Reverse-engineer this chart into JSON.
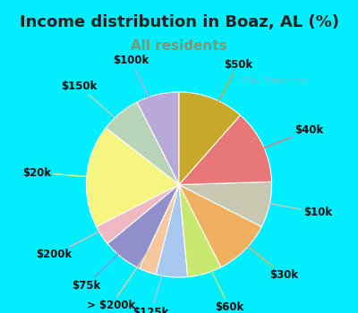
{
  "title": "Income distribution in Boaz, AL (%)",
  "subtitle": "All residents",
  "title_color": "#222222",
  "subtitle_color": "#779977",
  "background_color": "#00eeff",
  "inner_bg_color": "#d6f0e8",
  "watermark": "City-Data.com",
  "labels": [
    "$100k",
    "$150k",
    "$20k",
    "$200k",
    "$75k",
    "> $200k",
    "$125k",
    "$60k",
    "$30k",
    "$10k",
    "$40k",
    "$50k"
  ],
  "values": [
    7.5,
    7.0,
    18.0,
    3.5,
    7.0,
    3.0,
    5.5,
    6.0,
    10.0,
    8.0,
    13.0,
    11.5
  ],
  "colors": [
    "#b8a9d9",
    "#b8d4b8",
    "#f5f580",
    "#f0b8c0",
    "#9090cc",
    "#f5c8a0",
    "#a8c8f0",
    "#c8e870",
    "#f0b060",
    "#c8c8b0",
    "#e87878",
    "#c8a828"
  ],
  "startangle": 90,
  "label_fontsize": 8.5,
  "title_fontsize": 13,
  "subtitle_fontsize": 11
}
